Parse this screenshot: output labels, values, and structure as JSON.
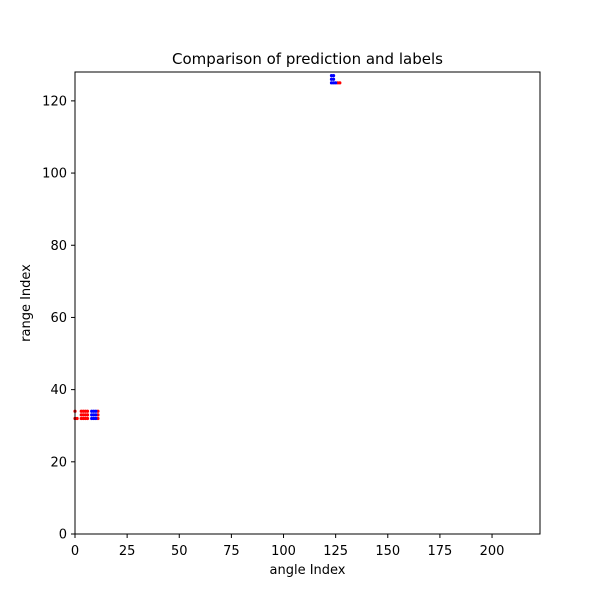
{
  "chart_data": {
    "type": "scatter",
    "title": "Comparison of prediction and labels",
    "xlabel": "angle Index",
    "ylabel": "range Index",
    "xlim": [
      0,
      223
    ],
    "ylim": [
      0,
      128
    ],
    "xticks": [
      0,
      25,
      50,
      75,
      100,
      125,
      150,
      175,
      200
    ],
    "yticks": [
      0,
      20,
      40,
      60,
      80,
      100,
      120
    ],
    "grid": false,
    "legend": "none",
    "series": [
      {
        "color": "#ff0000",
        "points": [
          {
            "x": 0,
            "y": 32
          },
          {
            "x": 1,
            "y": 32
          },
          {
            "x": 0,
            "y": 34
          },
          {
            "x": 3,
            "y": 32
          },
          {
            "x": 4,
            "y": 32
          },
          {
            "x": 5,
            "y": 32
          },
          {
            "x": 6,
            "y": 32
          },
          {
            "x": 3,
            "y": 33
          },
          {
            "x": 4,
            "y": 33
          },
          {
            "x": 5,
            "y": 33
          },
          {
            "x": 6,
            "y": 33
          },
          {
            "x": 3,
            "y": 34
          },
          {
            "x": 4,
            "y": 34
          },
          {
            "x": 5,
            "y": 34
          },
          {
            "x": 6,
            "y": 34
          },
          {
            "x": 11,
            "y": 32
          },
          {
            "x": 11,
            "y": 33
          },
          {
            "x": 11,
            "y": 34
          },
          {
            "x": 126,
            "y": 125
          },
          {
            "x": 127,
            "y": 125
          }
        ]
      },
      {
        "color": "#0000ff",
        "points": [
          {
            "x": 8,
            "y": 32
          },
          {
            "x": 9,
            "y": 32
          },
          {
            "x": 10,
            "y": 32
          },
          {
            "x": 8,
            "y": 33
          },
          {
            "x": 9,
            "y": 33
          },
          {
            "x": 10,
            "y": 33
          },
          {
            "x": 8,
            "y": 34
          },
          {
            "x": 9,
            "y": 34
          },
          {
            "x": 10,
            "y": 34
          },
          {
            "x": 123,
            "y": 125
          },
          {
            "x": 124,
            "y": 125
          },
          {
            "x": 125,
            "y": 125
          },
          {
            "x": 123,
            "y": 126
          },
          {
            "x": 124,
            "y": 126
          },
          {
            "x": 123,
            "y": 127
          },
          {
            "x": 124,
            "y": 127
          }
        ]
      }
    ]
  }
}
